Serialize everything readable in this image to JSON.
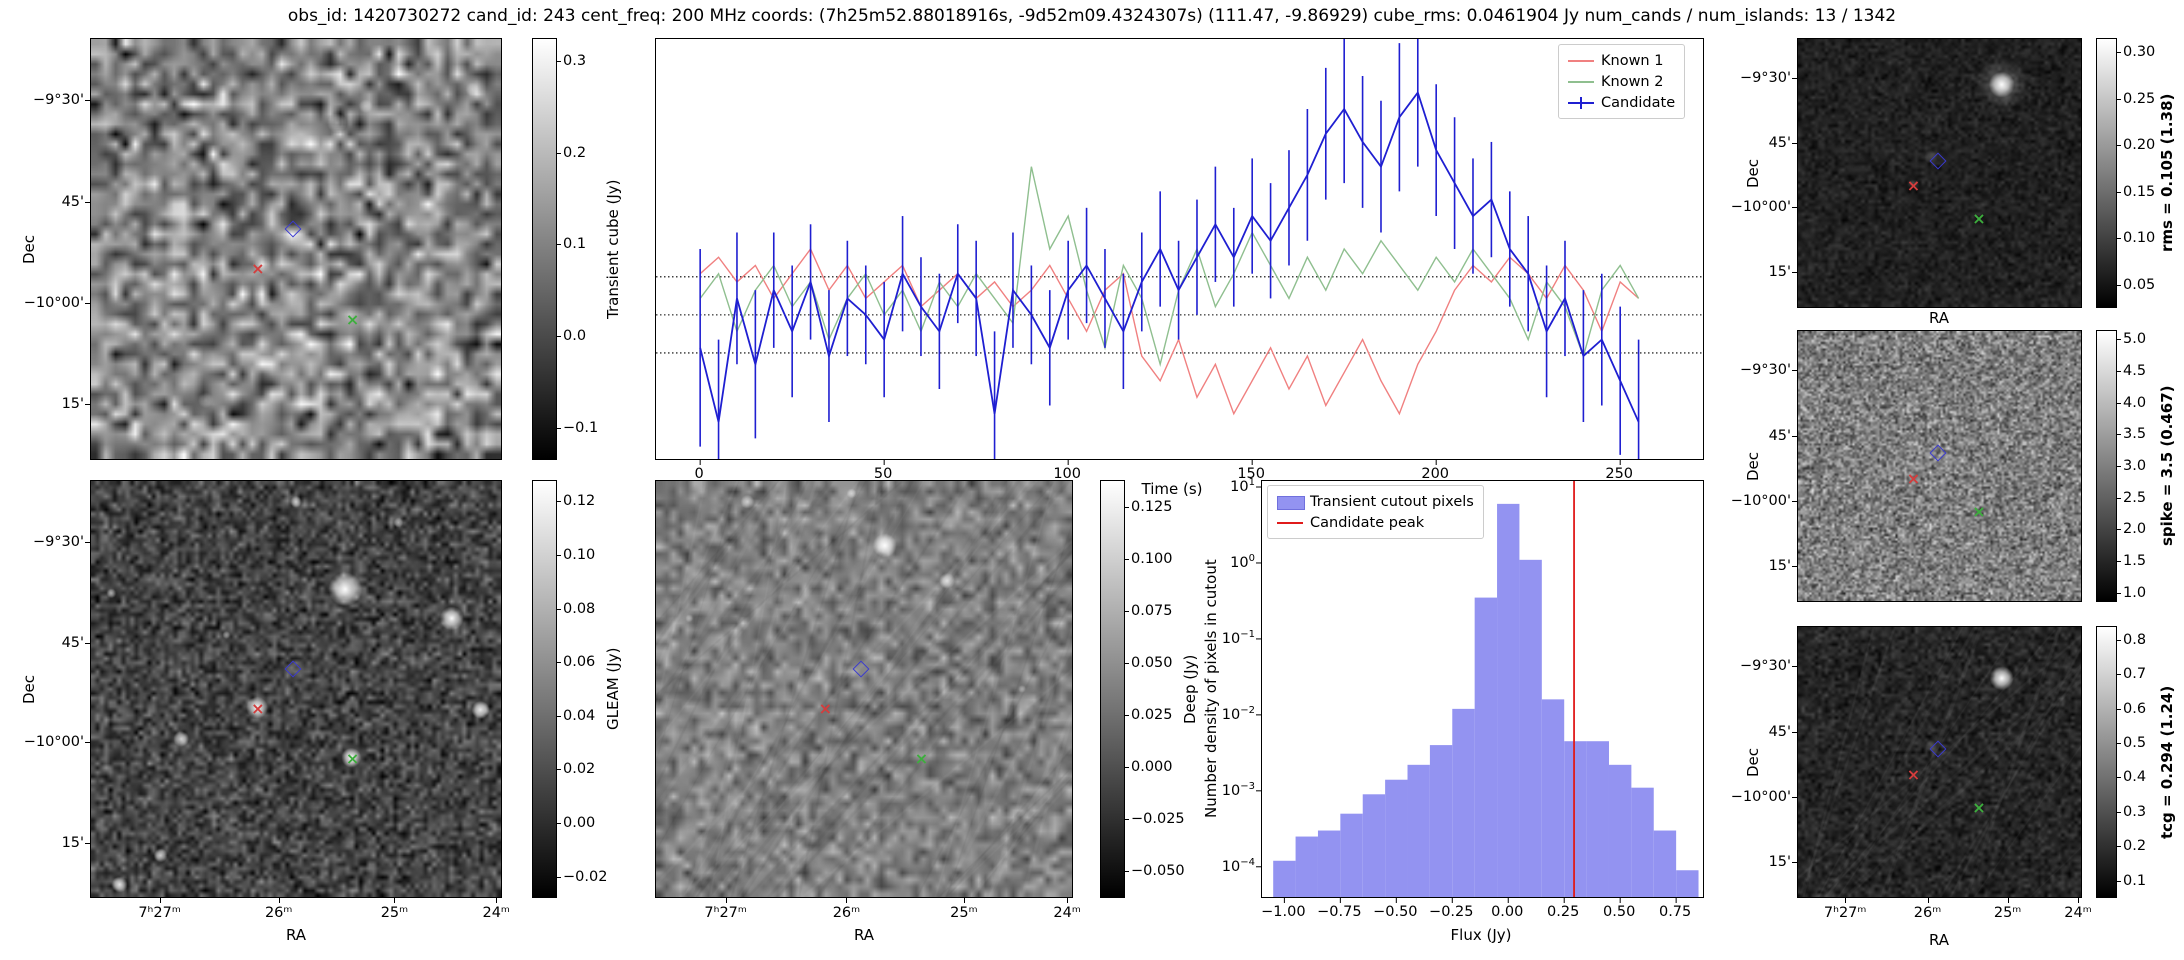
{
  "title": "obs_id: 1420730272 cand_id: 243 cent_freq: 200 MHz coords: (7h25m52.88018916s, -9d52m09.4324307s) (111.47, -9.86929) cube_rms: 0.0461904 Jy num_cands / num_islands: 13 / 1342",
  "axis": {
    "dec_label": "Dec",
    "ra_label": "RA",
    "dec_ticks": [
      "−9°30'",
      "45'",
      "−10°00'",
      "15'"
    ],
    "ra_ticks": [
      "7ʰ27ᵐ",
      "26ᵐ",
      "25ᵐ",
      "24ᵐ"
    ]
  },
  "markers": {
    "candidate": {
      "fx": 0.49,
      "fy": 0.45,
      "color": "#3a3ad0",
      "shape": "diamond"
    },
    "known1": {
      "fx": 0.405,
      "fy": 0.545,
      "color": "#d43d3d",
      "shape": "x"
    },
    "known2": {
      "fx": 0.635,
      "fy": 0.665,
      "color": "#3dae3d",
      "shape": "x"
    }
  },
  "panels": {
    "transient": {
      "cbar_label": "Transient cube (Jy)",
      "cbar_ticks": [
        {
          "v": 0.3,
          "label": "0.3"
        },
        {
          "v": 0.2,
          "label": "0.2"
        },
        {
          "v": 0.1,
          "label": "0.1"
        },
        {
          "v": 0.0,
          "label": "0.0"
        },
        {
          "v": -0.1,
          "label": "−0.1"
        }
      ]
    },
    "gleam": {
      "cbar_label": "GLEAM (Jy)",
      "cbar_ticks": [
        {
          "v": 0.12,
          "label": "0.12"
        },
        {
          "v": 0.1,
          "label": "0.10"
        },
        {
          "v": 0.08,
          "label": "0.08"
        },
        {
          "v": 0.06,
          "label": "0.06"
        },
        {
          "v": 0.04,
          "label": "0.04"
        },
        {
          "v": 0.02,
          "label": "0.02"
        },
        {
          "v": 0.0,
          "label": "0.00"
        },
        {
          "v": -0.02,
          "label": "−0.02"
        }
      ]
    },
    "deep": {
      "cbar_label": "Deep (Jy)",
      "cbar_ticks": [
        {
          "v": 0.125,
          "label": "0.125"
        },
        {
          "v": 0.1,
          "label": "0.100"
        },
        {
          "v": 0.075,
          "label": "0.075"
        },
        {
          "v": 0.05,
          "label": "0.050"
        },
        {
          "v": 0.025,
          "label": "0.025"
        },
        {
          "v": 0.0,
          "label": "0.000"
        },
        {
          "v": -0.025,
          "label": "−0.025"
        },
        {
          "v": -0.05,
          "label": "−0.050"
        }
      ]
    },
    "rms": {
      "cbar_label": "rms = 0.105 (1.38)",
      "cbar_ticks": [
        {
          "v": 0.3,
          "label": "0.30"
        },
        {
          "v": 0.25,
          "label": "0.25"
        },
        {
          "v": 0.2,
          "label": "0.20"
        },
        {
          "v": 0.15,
          "label": "0.15"
        },
        {
          "v": 0.1,
          "label": "0.10"
        },
        {
          "v": 0.05,
          "label": "0.05"
        }
      ]
    },
    "spike": {
      "cbar_label": "spike = 3.5 (0.467)",
      "cbar_ticks": [
        {
          "v": 5.0,
          "label": "5.0"
        },
        {
          "v": 4.5,
          "label": "4.5"
        },
        {
          "v": 4.0,
          "label": "4.0"
        },
        {
          "v": 3.5,
          "label": "3.5"
        },
        {
          "v": 3.0,
          "label": "3.0"
        },
        {
          "v": 2.5,
          "label": "2.5"
        },
        {
          "v": 2.0,
          "label": "2.0"
        },
        {
          "v": 1.5,
          "label": "1.5"
        },
        {
          "v": 1.0,
          "label": "1.0"
        }
      ]
    },
    "tcg": {
      "cbar_label": "tcg = 0.294 (1.24)",
      "cbar_ticks": [
        {
          "v": 0.8,
          "label": "0.8"
        },
        {
          "v": 0.7,
          "label": "0.7"
        },
        {
          "v": 0.6,
          "label": "0.6"
        },
        {
          "v": 0.5,
          "label": "0.5"
        },
        {
          "v": 0.4,
          "label": "0.4"
        },
        {
          "v": 0.3,
          "label": "0.3"
        },
        {
          "v": 0.2,
          "label": "0.2"
        },
        {
          "v": 0.1,
          "label": "0.1"
        }
      ]
    }
  },
  "chart_data": [
    {
      "type": "line",
      "title": "",
      "xlabel": "Time (s)",
      "ylabel": "",
      "xlim": [
        -12,
        272.5
      ],
      "ylim": [
        -0.175,
        0.335
      ],
      "xticks": [
        0,
        50,
        100,
        150,
        200,
        250
      ],
      "reference_lines": [
        0.0462,
        0.0,
        -0.0462
      ],
      "legend_position": "upper right",
      "grid": false,
      "x": [
        0,
        5,
        10,
        15,
        20,
        25,
        30,
        35,
        40,
        45,
        50,
        55,
        60,
        65,
        70,
        75,
        80,
        85,
        90,
        95,
        100,
        105,
        110,
        115,
        120,
        125,
        130,
        135,
        140,
        145,
        150,
        155,
        160,
        165,
        170,
        175,
        180,
        185,
        190,
        195,
        200,
        205,
        210,
        215,
        220,
        225,
        230,
        235,
        240,
        245,
        250,
        255
      ],
      "series": [
        {
          "name": "Known 1",
          "color": "#f08080",
          "values": [
            0.05,
            0.07,
            0.04,
            0.06,
            0.02,
            0.05,
            0.08,
            0.03,
            0.06,
            0.02,
            0.04,
            0.06,
            0.01,
            0.03,
            0.05,
            0.02,
            0.04,
            0.01,
            0.03,
            0.06,
            0.02,
            -0.02,
            0.03,
            0.05,
            -0.05,
            -0.08,
            -0.03,
            -0.1,
            -0.06,
            -0.12,
            -0.08,
            -0.04,
            -0.09,
            -0.05,
            -0.11,
            -0.07,
            -0.03,
            -0.08,
            -0.12,
            -0.06,
            -0.02,
            0.03,
            0.06,
            0.04,
            0.07,
            0.05,
            0.02,
            0.06,
            0.03,
            -0.02,
            0.04,
            0.02
          ]
        },
        {
          "name": "Known 2",
          "color": "#8fbf8f",
          "values": [
            0.02,
            0.05,
            -0.02,
            0.03,
            0.06,
            0.01,
            0.04,
            -0.03,
            0.02,
            0.05,
            0.0,
            0.03,
            -0.02,
            0.04,
            0.01,
            0.05,
            0.02,
            -0.01,
            0.18,
            0.08,
            0.12,
            0.03,
            -0.04,
            0.06,
            0.02,
            -0.06,
            0.03,
            0.08,
            0.01,
            0.05,
            0.1,
            0.06,
            0.02,
            0.07,
            0.03,
            0.08,
            0.05,
            0.09,
            0.06,
            0.03,
            0.07,
            0.04,
            0.08,
            0.05,
            0.02,
            -0.03,
            0.04,
            0.01,
            -0.05,
            0.03,
            0.06,
            0.02
          ]
        },
        {
          "name": "Candidate",
          "color": "#1f1fd1",
          "values": [
            -0.04,
            -0.13,
            0.02,
            -0.06,
            0.03,
            -0.02,
            0.04,
            -0.05,
            0.02,
            0.0,
            -0.03,
            0.05,
            0.01,
            -0.02,
            0.05,
            0.02,
            -0.12,
            0.03,
            0.0,
            -0.04,
            0.03,
            0.06,
            0.02,
            -0.02,
            0.04,
            0.08,
            0.03,
            0.07,
            0.11,
            0.07,
            0.12,
            0.09,
            0.13,
            0.17,
            0.22,
            0.25,
            0.21,
            0.18,
            0.24,
            0.27,
            0.2,
            0.16,
            0.12,
            0.14,
            0.08,
            0.05,
            -0.02,
            0.02,
            -0.05,
            -0.03,
            -0.08,
            -0.13
          ],
          "errors": [
            0.12,
            0.1,
            0.08,
            0.09,
            0.07,
            0.08,
            0.07,
            0.08,
            0.07,
            0.06,
            0.07,
            0.07,
            0.06,
            0.07,
            0.06,
            0.07,
            0.1,
            0.07,
            0.06,
            0.07,
            0.06,
            0.07,
            0.06,
            0.07,
            0.06,
            0.07,
            0.06,
            0.07,
            0.07,
            0.06,
            0.07,
            0.07,
            0.07,
            0.08,
            0.08,
            0.09,
            0.08,
            0.08,
            0.09,
            0.09,
            0.08,
            0.08,
            0.07,
            0.07,
            0.07,
            0.07,
            0.08,
            0.07,
            0.08,
            0.08,
            0.09,
            0.1
          ]
        }
      ]
    },
    {
      "type": "bar",
      "xlabel": "Flux (Jy)",
      "ylabel": "Number density of pixels in cutout",
      "yscale": "log",
      "xlim": [
        -1.1,
        0.87
      ],
      "ylim": [
        4e-05,
        12
      ],
      "xticks": [
        -1.0,
        -0.75,
        -0.5,
        -0.25,
        0.0,
        0.25,
        0.5,
        0.75
      ],
      "ytick_exponents": [
        -4,
        -3,
        -2,
        -1,
        0,
        1
      ],
      "bin_edges": [
        -1.05,
        -0.95,
        -0.85,
        -0.75,
        -0.65,
        -0.55,
        -0.45,
        -0.35,
        -0.25,
        -0.15,
        -0.05,
        0.05,
        0.15,
        0.25,
        0.35,
        0.45,
        0.55,
        0.65,
        0.75,
        0.85
      ],
      "values": [
        0.00012,
        0.00025,
        0.0003,
        0.0005,
        0.0009,
        0.0014,
        0.0022,
        0.004,
        0.012,
        0.35,
        6.0,
        1.1,
        0.016,
        0.0045,
        0.0045,
        0.0022,
        0.0011,
        0.0003,
        9e-05
      ],
      "candidate_peak": 0.294,
      "legend_labels": [
        "Transient cutout pixels",
        "Candidate peak"
      ],
      "bar_color": "#9393f1",
      "peak_line_color": "#e01b1b"
    }
  ]
}
